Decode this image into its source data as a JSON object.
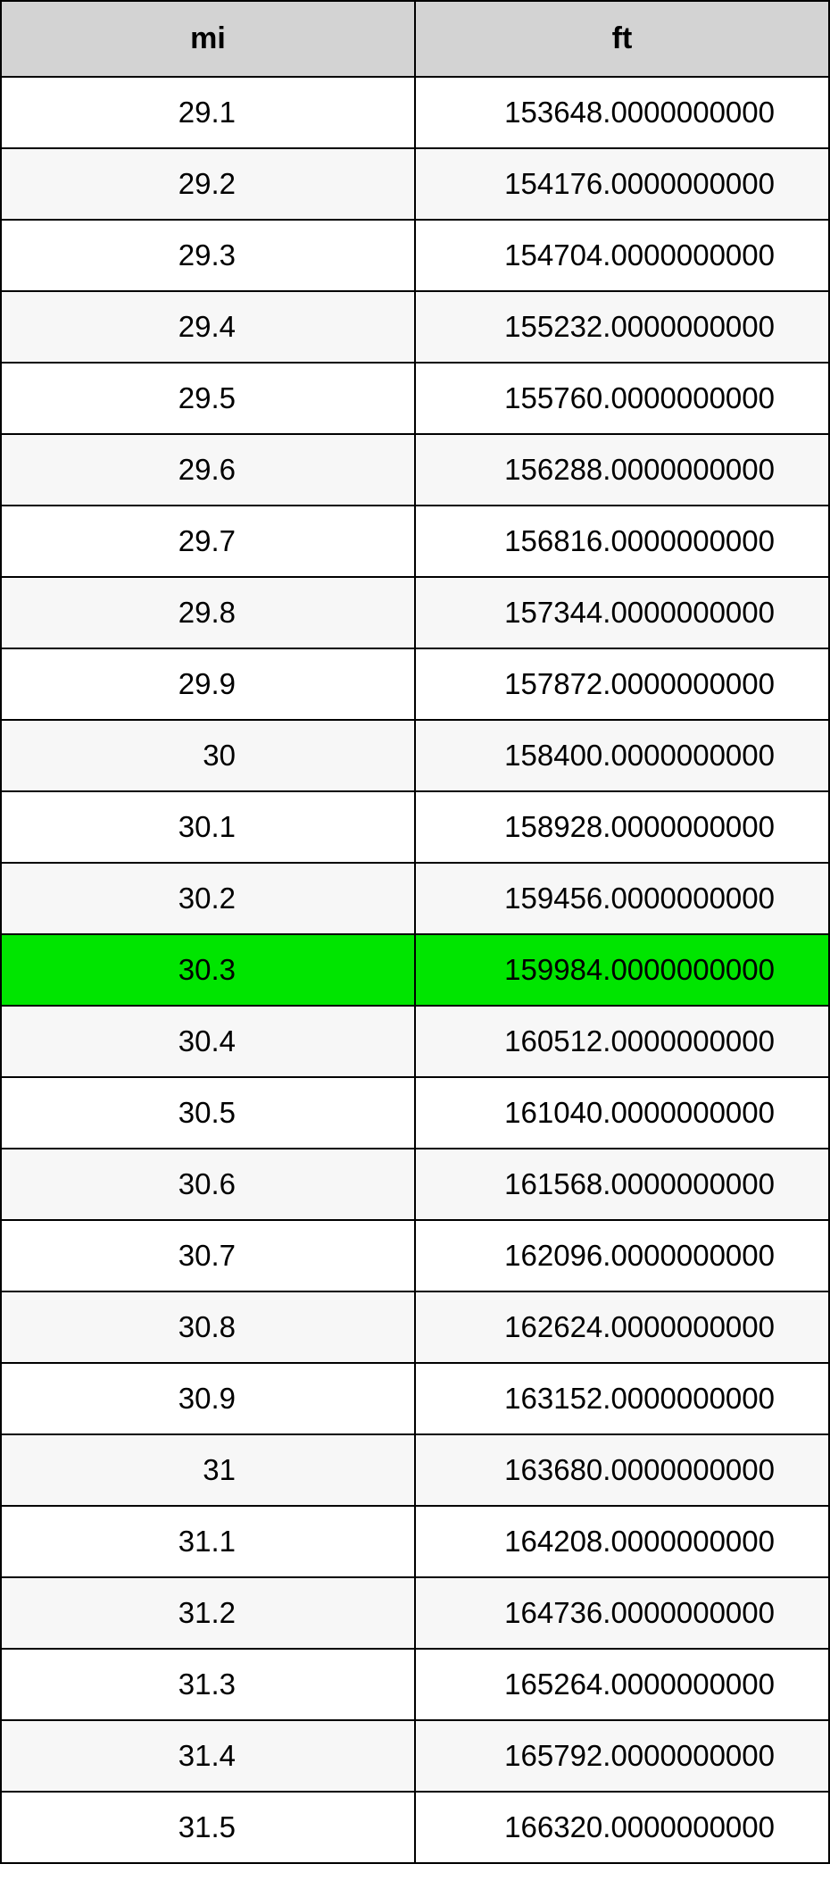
{
  "table": {
    "columns": [
      "mi",
      "ft"
    ],
    "header_bg": "#d3d3d3",
    "highlight_bg": "#00e500",
    "row_alt_bg": "#f7f7f7",
    "row_bg": "#ffffff",
    "border_color": "#000000",
    "font_size_header": 34,
    "font_size_cell": 33,
    "highlighted_row_index": 12,
    "rows": [
      {
        "mi": "29.1",
        "ft": "153648.0000000000"
      },
      {
        "mi": "29.2",
        "ft": "154176.0000000000"
      },
      {
        "mi": "29.3",
        "ft": "154704.0000000000"
      },
      {
        "mi": "29.4",
        "ft": "155232.0000000000"
      },
      {
        "mi": "29.5",
        "ft": "155760.0000000000"
      },
      {
        "mi": "29.6",
        "ft": "156288.0000000000"
      },
      {
        "mi": "29.7",
        "ft": "156816.0000000000"
      },
      {
        "mi": "29.8",
        "ft": "157344.0000000000"
      },
      {
        "mi": "29.9",
        "ft": "157872.0000000000"
      },
      {
        "mi": "30",
        "ft": "158400.0000000000"
      },
      {
        "mi": "30.1",
        "ft": "158928.0000000000"
      },
      {
        "mi": "30.2",
        "ft": "159456.0000000000"
      },
      {
        "mi": "30.3",
        "ft": "159984.0000000000"
      },
      {
        "mi": "30.4",
        "ft": "160512.0000000000"
      },
      {
        "mi": "30.5",
        "ft": "161040.0000000000"
      },
      {
        "mi": "30.6",
        "ft": "161568.0000000000"
      },
      {
        "mi": "30.7",
        "ft": "162096.0000000000"
      },
      {
        "mi": "30.8",
        "ft": "162624.0000000000"
      },
      {
        "mi": "30.9",
        "ft": "163152.0000000000"
      },
      {
        "mi": "31",
        "ft": "163680.0000000000"
      },
      {
        "mi": "31.1",
        "ft": "164208.0000000000"
      },
      {
        "mi": "31.2",
        "ft": "164736.0000000000"
      },
      {
        "mi": "31.3",
        "ft": "165264.0000000000"
      },
      {
        "mi": "31.4",
        "ft": "165792.0000000000"
      },
      {
        "mi": "31.5",
        "ft": "166320.0000000000"
      }
    ]
  }
}
